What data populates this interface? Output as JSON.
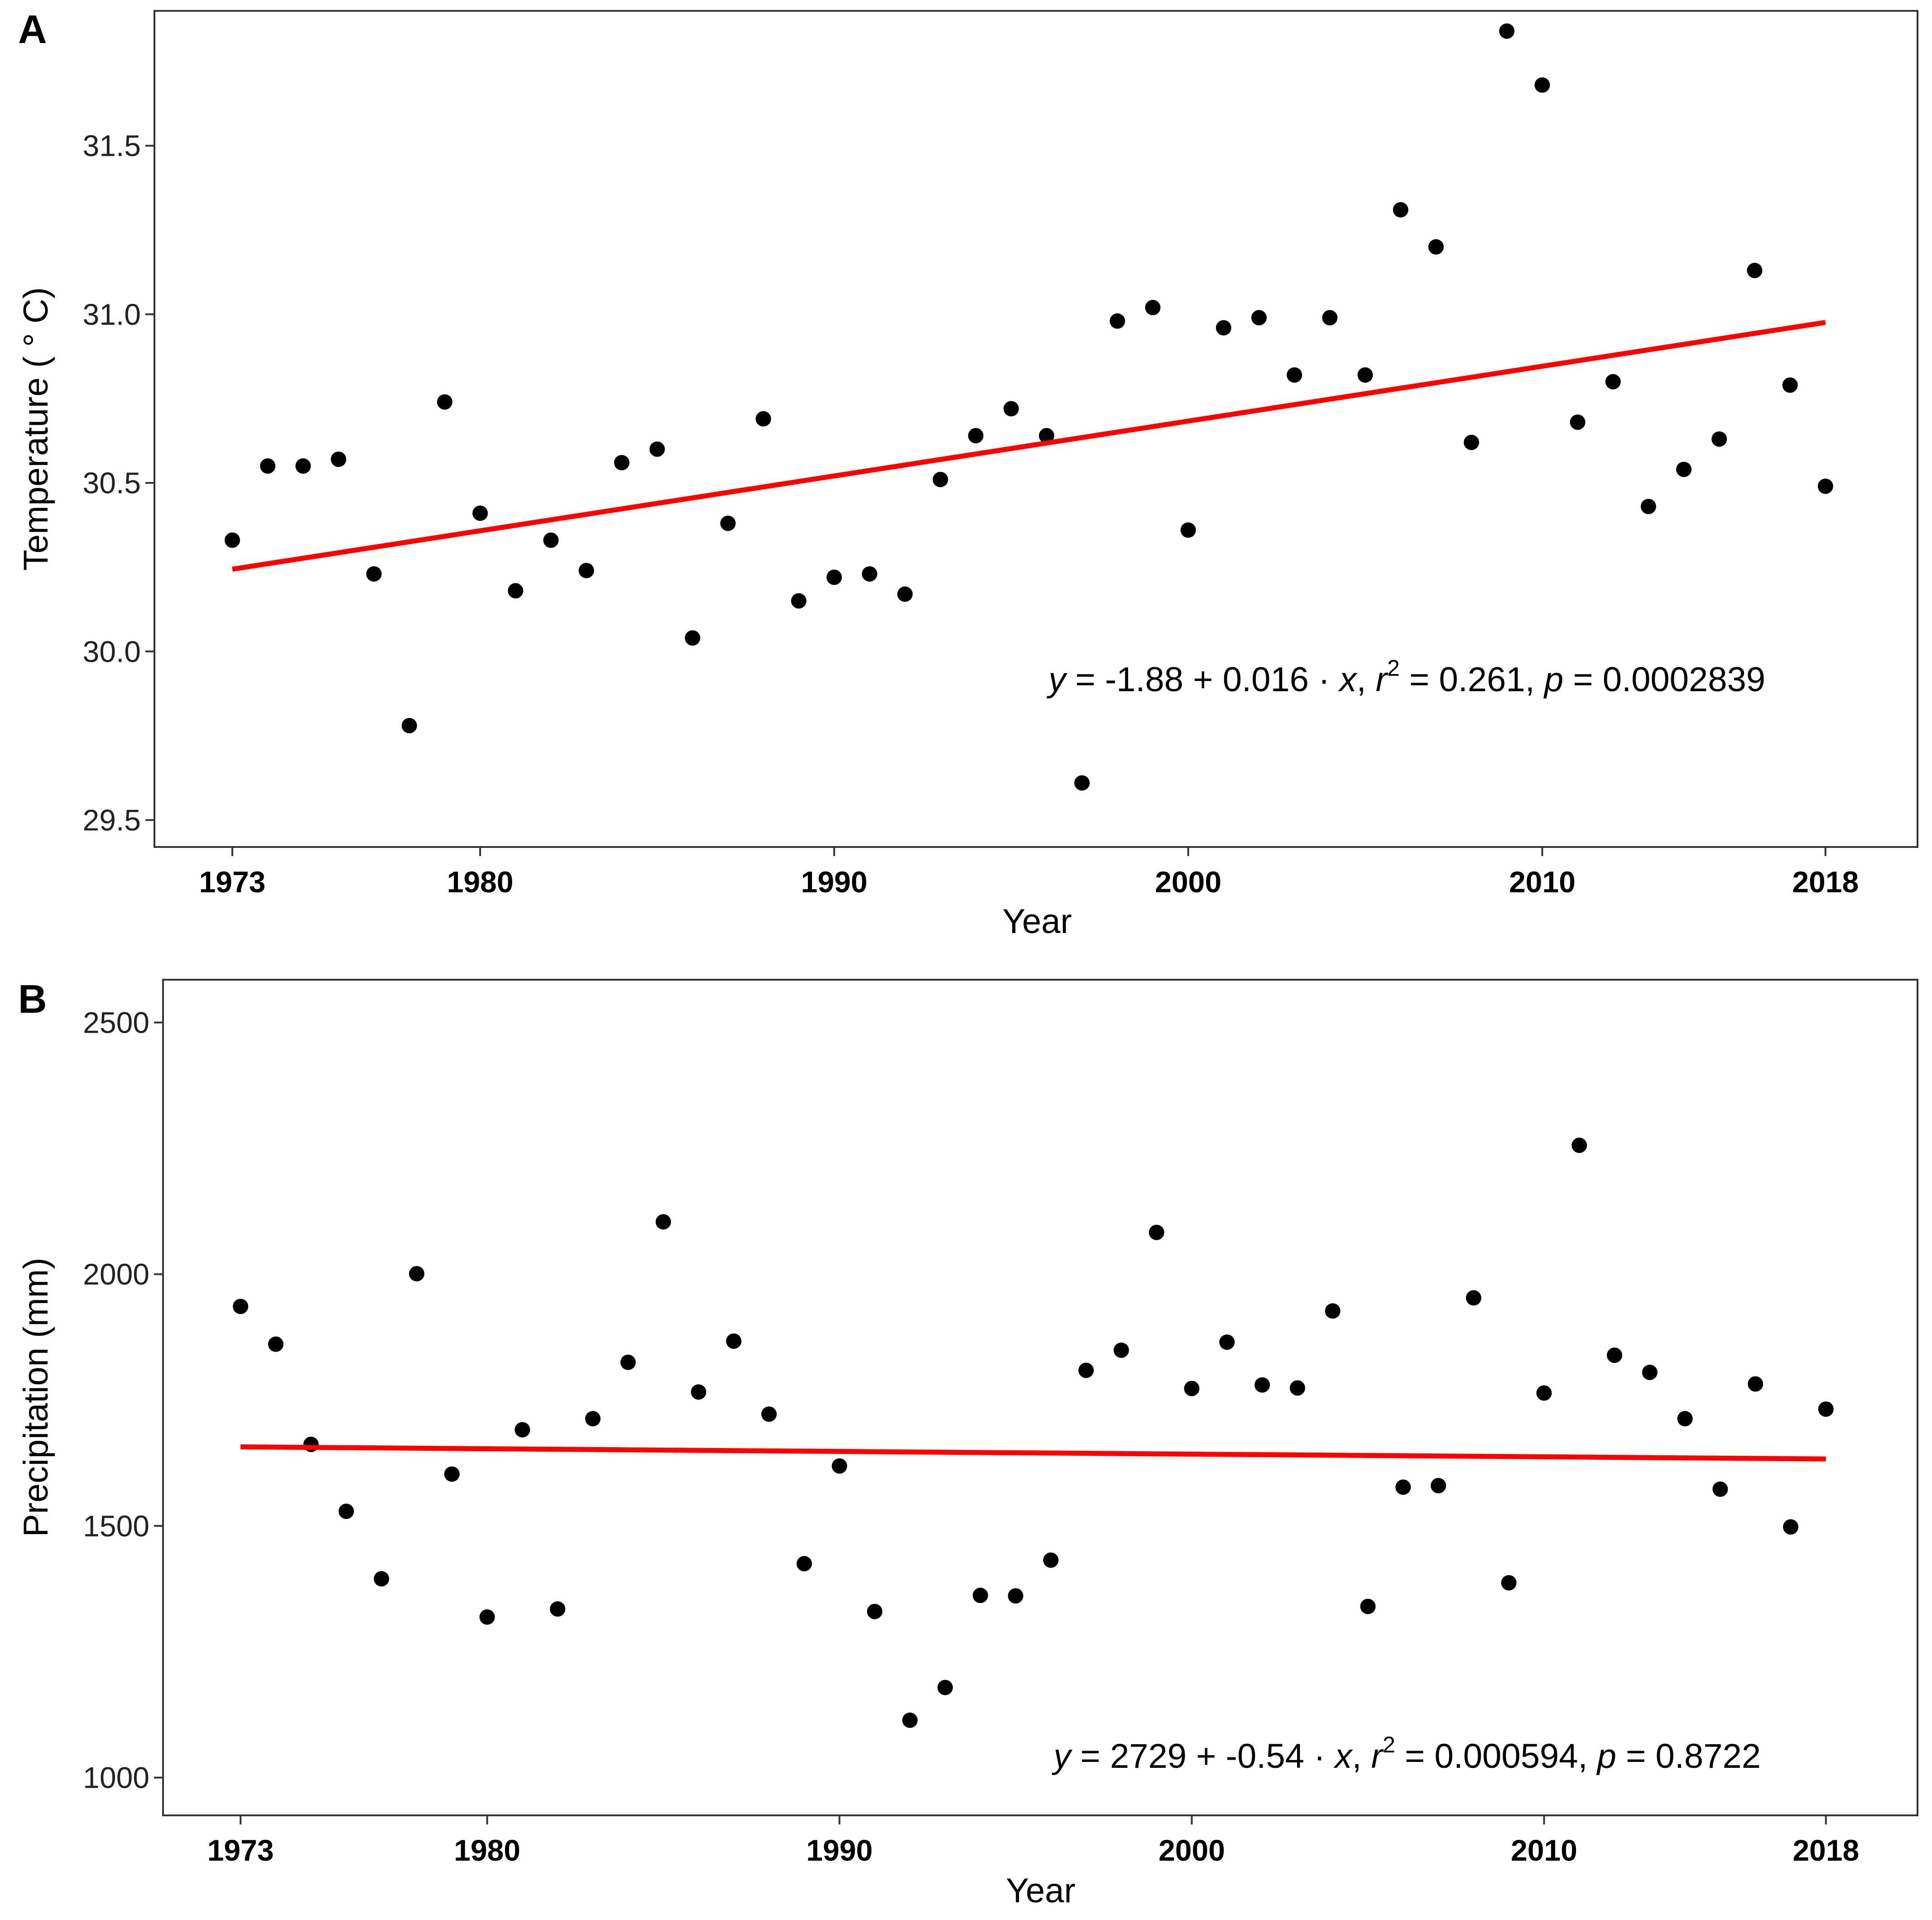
{
  "chart_data": [
    {
      "panel": "A",
      "type": "scatter",
      "xlabel": "Year",
      "ylabel": "Temperature ( ° C)",
      "xlim": [
        1970.8,
        2020.6
      ],
      "ylim": [
        29.42,
        31.9
      ],
      "xticks": [
        1973,
        1980,
        1990,
        2000,
        2010,
        2018
      ],
      "yticks": [
        29.5,
        30.0,
        30.5,
        31.0,
        31.5
      ],
      "ytick_labels": [
        "29.5",
        "30.0",
        "30.5",
        "31.0",
        "31.5"
      ],
      "x": [
        1973,
        1974,
        1975,
        1976,
        1977,
        1978,
        1979,
        1980,
        1981,
        1982,
        1983,
        1984,
        1985,
        1986,
        1987,
        1988,
        1989,
        1990,
        1991,
        1992,
        1993,
        1994,
        1995,
        1996,
        1997,
        1998,
        1999,
        2000,
        2001,
        2002,
        2003,
        2004,
        2005,
        2006,
        2007,
        2008,
        2009,
        2010,
        2011,
        2012,
        2013,
        2014,
        2015,
        2016,
        2017,
        2018
      ],
      "y": [
        30.33,
        30.55,
        30.55,
        30.57,
        30.23,
        29.78,
        30.74,
        30.41,
        30.18,
        30.33,
        30.24,
        30.56,
        30.6,
        30.04,
        30.38,
        30.69,
        30.15,
        30.22,
        30.23,
        30.17,
        30.51,
        30.64,
        30.72,
        30.64,
        29.61,
        30.98,
        31.02,
        30.36,
        30.96,
        30.99,
        30.82,
        30.99,
        30.82,
        31.31,
        31.2,
        30.62,
        31.84,
        31.68,
        30.68,
        30.8,
        30.43,
        30.54,
        30.63,
        31.13,
        30.79,
        30.49
      ],
      "fit_line": {
        "x": [
          1973,
          2018
        ],
        "y": [
          30.244,
          30.976
        ],
        "color": "#ff0000"
      },
      "equation": {
        "y": "y",
        "eq": " = ",
        "intercept": "-1.88",
        "plus": " + ",
        "slope": "0.016",
        "dot": " · ",
        "x": "x",
        "sep1": ",  ",
        "r": "r",
        "r_exp": "2",
        "eq_r": " = ",
        "r2": "0.261",
        "sep2": ",  ",
        "p": "p",
        "eq_p": " = ",
        "pval": "0.0002839"
      }
    },
    {
      "panel": "B",
      "type": "scatter",
      "xlabel": "Year",
      "ylabel": "Precipitation (mm)",
      "xlim": [
        1970.8,
        2020.6
      ],
      "ylim": [
        925,
        2585
      ],
      "xticks": [
        1973,
        1980,
        1990,
        2000,
        2010,
        2018
      ],
      "yticks": [
        1000,
        1500,
        2000,
        2500
      ],
      "ytick_labels": [
        "1000",
        "1500",
        "2000",
        "2500"
      ],
      "x": [
        1973,
        1974,
        1975,
        1976,
        1977,
        1978,
        1979,
        1980,
        1981,
        1982,
        1983,
        1984,
        1985,
        1986,
        1987,
        1988,
        1989,
        1990,
        1991,
        1992,
        1993,
        1994,
        1995,
        1996,
        1997,
        1998,
        1999,
        2000,
        2001,
        2002,
        2003,
        2004,
        2005,
        2006,
        2007,
        2008,
        2009,
        2010,
        2011,
        2012,
        2013,
        2014,
        2015,
        2016,
        2017,
        2018
      ],
      "y": [
        1936,
        1861,
        1662,
        1529,
        1395,
        2001,
        1603,
        1319,
        1691,
        1335,
        1713,
        1825,
        2104,
        1766,
        1867,
        1722,
        1425,
        1619,
        1330,
        1114,
        1179,
        1362,
        1361,
        1432,
        1809,
        1849,
        2083,
        1773,
        1865,
        1780,
        1774,
        1927,
        1340,
        1577,
        1580,
        1953,
        1387,
        1764,
        2256,
        1839,
        1805,
        1713,
        1573,
        1782,
        1498,
        1732
      ],
      "fit_line": {
        "x": [
          1973,
          2018
        ],
        "y": [
          1657,
          1633
        ],
        "color": "#ff0000"
      },
      "equation": {
        "y": "y",
        "eq": " = ",
        "intercept": "2729",
        "plus": " + ",
        "slope": "-0.54",
        "dot": " · ",
        "x": "x",
        "sep1": ",  ",
        "r": "r",
        "r_exp": "2",
        "eq_r": " = ",
        "r2": "0.000594",
        "sep2": ",  ",
        "p": "p",
        "eq_p": " = ",
        "pval": "0.8722"
      }
    }
  ],
  "style": {
    "point_color": "#000000",
    "line_color": "#ff0000",
    "frame_color": "#333333"
  }
}
